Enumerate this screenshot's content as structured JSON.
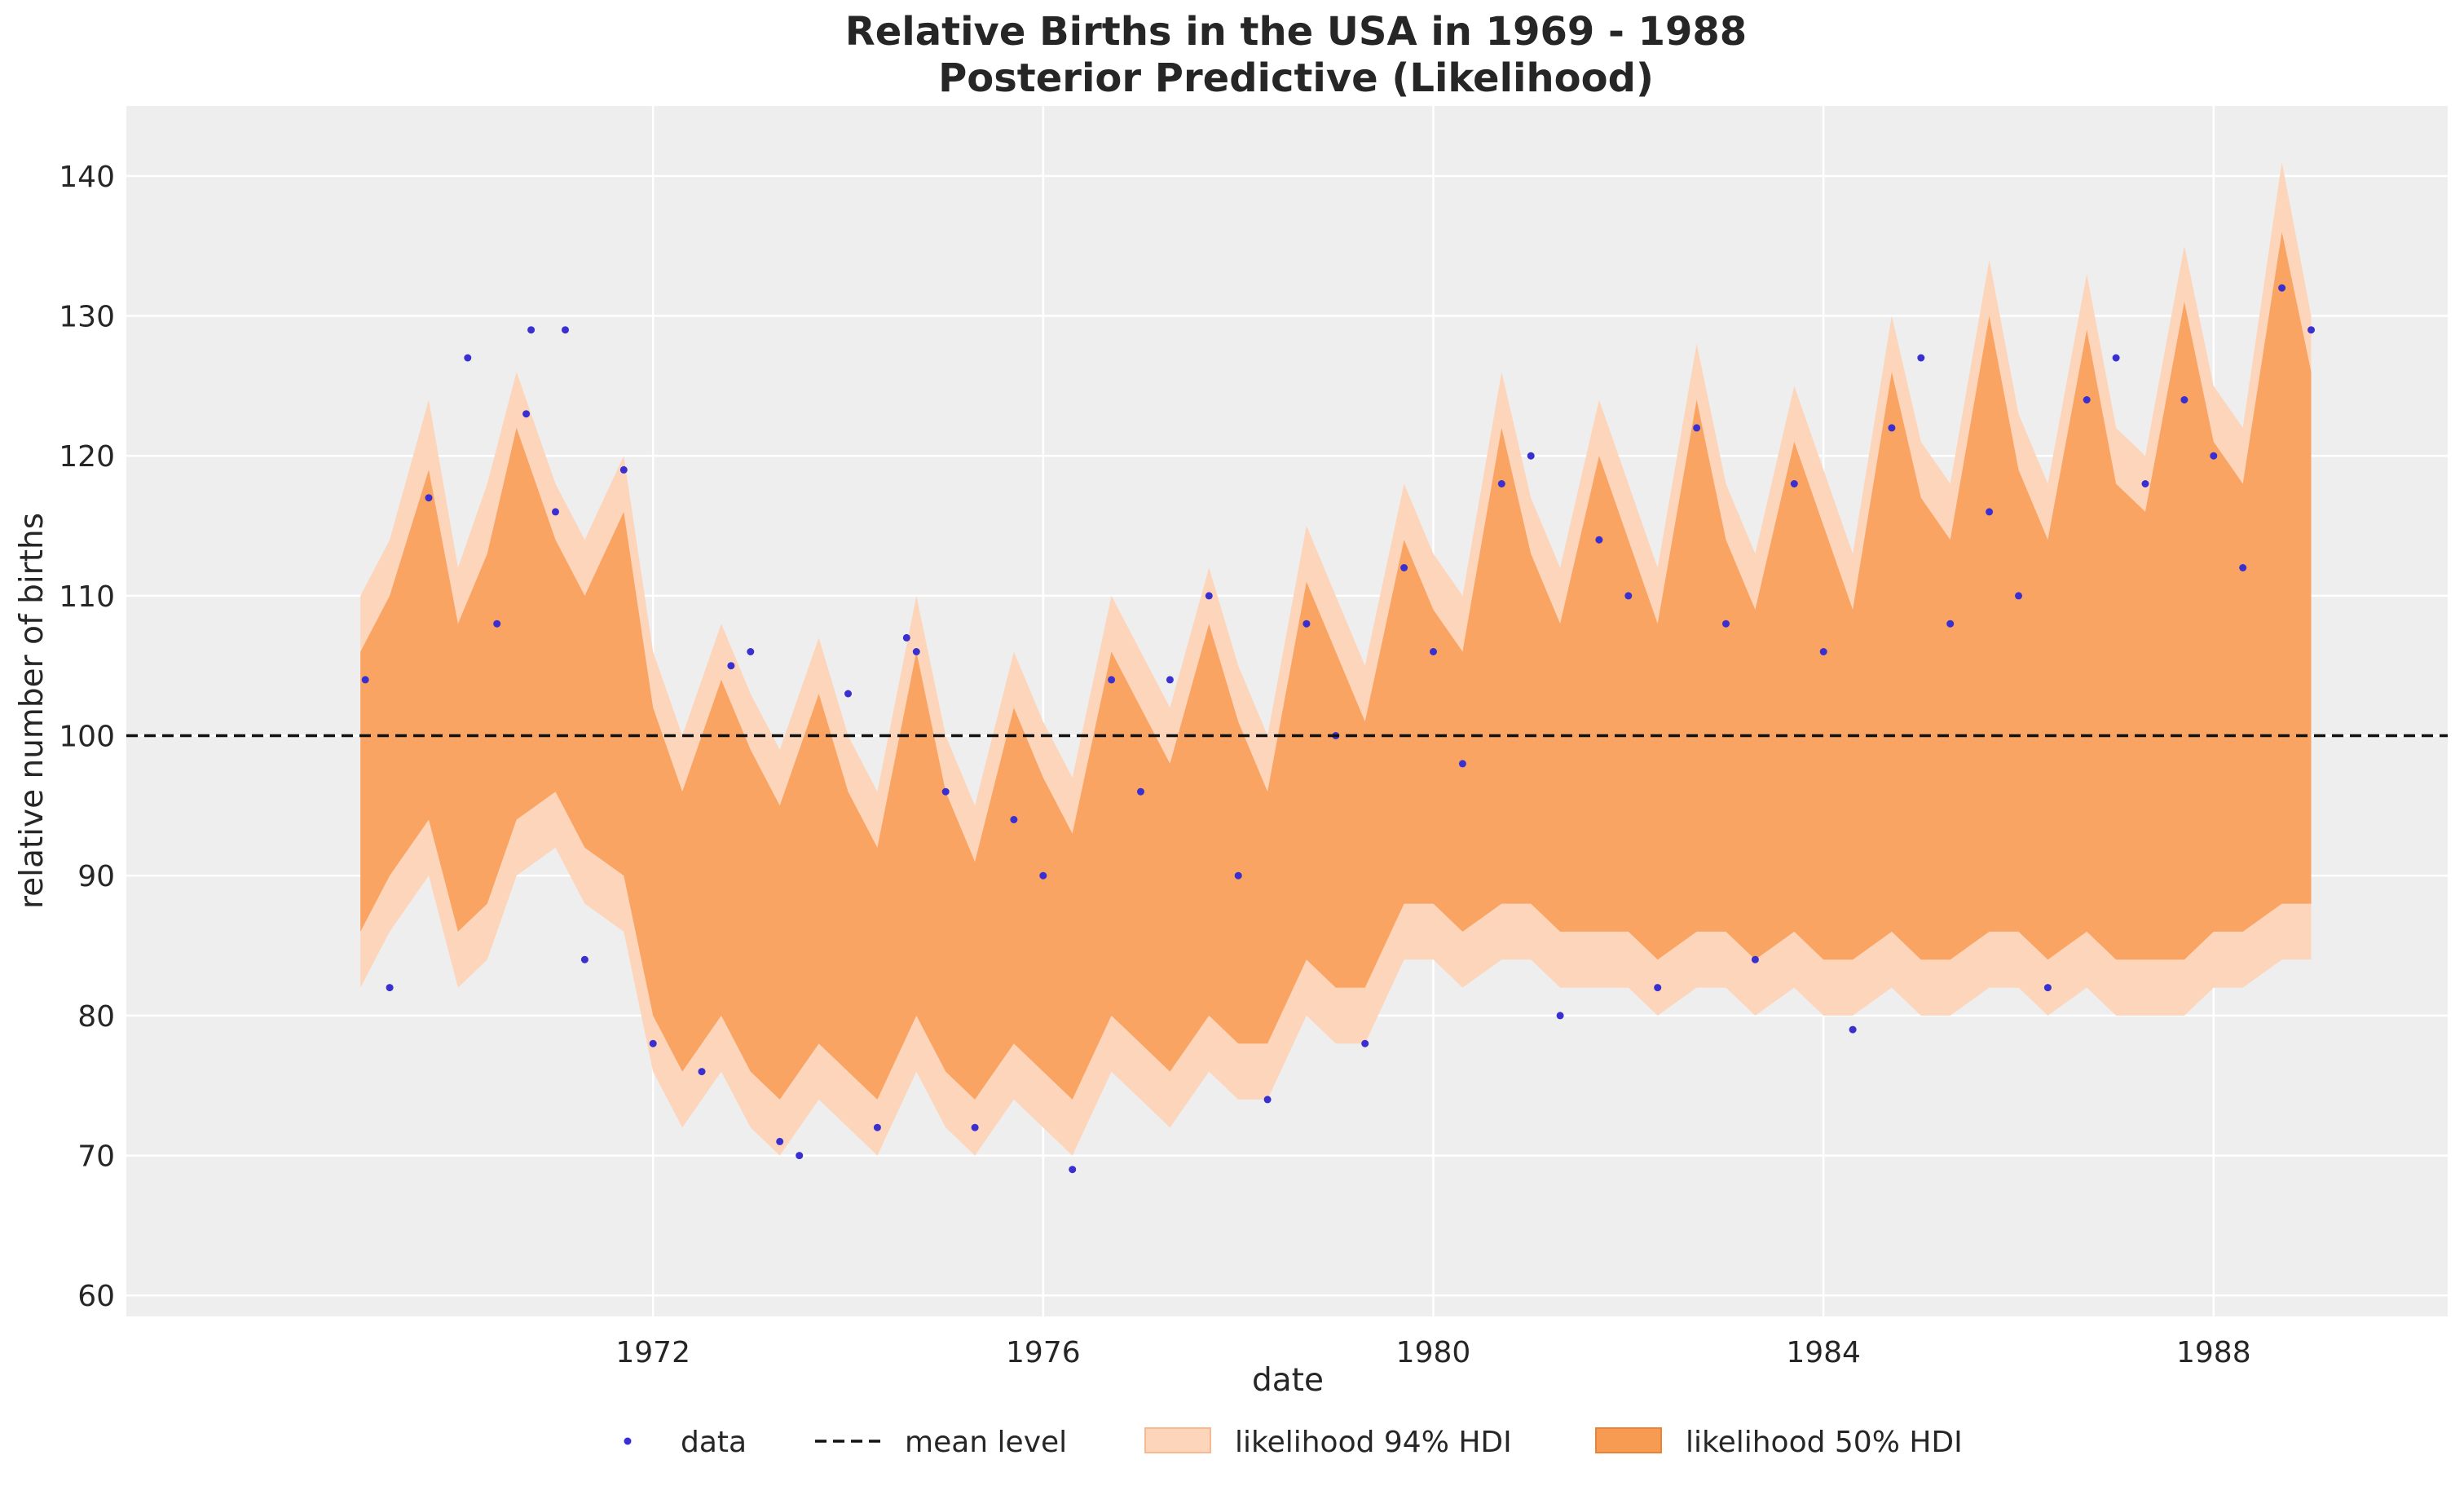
{
  "chart_data": {
    "type": "line",
    "title": [
      "Relative Births in the USA in 1969 - 1988",
      "Posterior Predictive (Likelihood)"
    ],
    "xlabel": "date",
    "ylabel": "relative number of births",
    "xlim": [
      1966.6,
      1990.4
    ],
    "ylim": [
      58.5,
      145
    ],
    "x_ticks": [
      {
        "value": 1972,
        "label": "1972"
      },
      {
        "value": 1976,
        "label": "1976"
      },
      {
        "value": 1980,
        "label": "1980"
      },
      {
        "value": 1984,
        "label": "1984"
      },
      {
        "value": 1988,
        "label": "1988"
      }
    ],
    "y_ticks": [
      {
        "value": 60,
        "label": "60"
      },
      {
        "value": 70,
        "label": "70"
      },
      {
        "value": 80,
        "label": "80"
      },
      {
        "value": 90,
        "label": "90"
      },
      {
        "value": 100,
        "label": "100"
      },
      {
        "value": 110,
        "label": "110"
      },
      {
        "value": 120,
        "label": "120"
      },
      {
        "value": 130,
        "label": "130"
      },
      {
        "value": 140,
        "label": "140"
      }
    ],
    "grid": true,
    "legend_position": "bottom-center",
    "mean_level": 100,
    "legend": [
      {
        "key": "data",
        "label": "data",
        "type": "scatter",
        "color": "#3a2fcf"
      },
      {
        "key": "mean",
        "label": "mean level",
        "type": "dashed-line",
        "color": "#000000"
      },
      {
        "key": "hdi94",
        "label": "likelihood 94% HDI",
        "type": "band",
        "color": "#fcd5bb"
      },
      {
        "key": "hdi50",
        "label": "likelihood 50% HDI",
        "type": "band",
        "color": "#f89b52"
      }
    ],
    "series": [
      {
        "name": "likelihood 94% HDI",
        "x": [
          1969.0,
          1969.3,
          1969.7,
          1970.0,
          1970.3,
          1970.6,
          1971.0,
          1971.3,
          1971.7,
          1972.0,
          1972.3,
          1972.7,
          1973.0,
          1973.3,
          1973.7,
          1974.0,
          1974.3,
          1974.7,
          1975.0,
          1975.3,
          1975.7,
          1976.0,
          1976.3,
          1976.7,
          1977.0,
          1977.3,
          1977.7,
          1978.0,
          1978.3,
          1978.7,
          1979.0,
          1979.3,
          1979.7,
          1980.0,
          1980.3,
          1980.7,
          1981.0,
          1981.3,
          1981.7,
          1982.0,
          1982.3,
          1982.7,
          1983.0,
          1983.3,
          1983.7,
          1984.0,
          1984.3,
          1984.7,
          1985.0,
          1985.3,
          1985.7,
          1986.0,
          1986.3,
          1986.7,
          1987.0,
          1987.3,
          1987.7,
          1988.0,
          1988.3,
          1988.7,
          1989.0
        ],
        "upper": [
          110,
          114,
          124,
          112,
          118,
          126,
          118,
          114,
          120,
          106,
          100,
          108,
          103,
          99,
          107,
          100,
          96,
          110,
          100,
          95,
          106,
          101,
          97,
          110,
          106,
          102,
          112,
          105,
          100,
          115,
          110,
          105,
          118,
          113,
          110,
          126,
          117,
          112,
          124,
          118,
          112,
          128,
          118,
          113,
          125,
          119,
          113,
          130,
          121,
          118,
          134,
          123,
          118,
          133,
          122,
          120,
          135,
          125,
          122,
          141,
          130
        ],
        "lower": [
          82,
          86,
          90,
          82,
          84,
          90,
          92,
          88,
          86,
          76,
          72,
          76,
          72,
          70,
          74,
          72,
          70,
          76,
          72,
          70,
          74,
          72,
          70,
          76,
          74,
          72,
          76,
          74,
          74,
          80,
          78,
          78,
          84,
          84,
          82,
          84,
          84,
          82,
          82,
          82,
          80,
          82,
          82,
          80,
          82,
          80,
          80,
          82,
          80,
          80,
          82,
          82,
          80,
          82,
          80,
          80,
          80,
          82,
          82,
          84,
          84
        ]
      },
      {
        "name": "likelihood 50% HDI",
        "x": [
          1969.0,
          1969.3,
          1969.7,
          1970.0,
          1970.3,
          1970.6,
          1971.0,
          1971.3,
          1971.7,
          1972.0,
          1972.3,
          1972.7,
          1973.0,
          1973.3,
          1973.7,
          1974.0,
          1974.3,
          1974.7,
          1975.0,
          1975.3,
          1975.7,
          1976.0,
          1976.3,
          1976.7,
          1977.0,
          1977.3,
          1977.7,
          1978.0,
          1978.3,
          1978.7,
          1979.0,
          1979.3,
          1979.7,
          1980.0,
          1980.3,
          1980.7,
          1981.0,
          1981.3,
          1981.7,
          1982.0,
          1982.3,
          1982.7,
          1983.0,
          1983.3,
          1983.7,
          1984.0,
          1984.3,
          1984.7,
          1985.0,
          1985.3,
          1985.7,
          1986.0,
          1986.3,
          1986.7,
          1987.0,
          1987.3,
          1987.7,
          1988.0,
          1988.3,
          1988.7,
          1989.0
        ],
        "upper": [
          106,
          110,
          119,
          108,
          113,
          122,
          114,
          110,
          116,
          102,
          96,
          104,
          99,
          95,
          103,
          96,
          92,
          106,
          96,
          91,
          102,
          97,
          93,
          106,
          102,
          98,
          108,
          101,
          96,
          111,
          106,
          101,
          114,
          109,
          106,
          122,
          113,
          108,
          120,
          114,
          108,
          124,
          114,
          109,
          121,
          115,
          109,
          126,
          117,
          114,
          130,
          119,
          114,
          129,
          118,
          116,
          131,
          121,
          118,
          136,
          126
        ],
        "lower": [
          86,
          90,
          94,
          86,
          88,
          94,
          96,
          92,
          90,
          80,
          76,
          80,
          76,
          74,
          78,
          76,
          74,
          80,
          76,
          74,
          78,
          76,
          74,
          80,
          78,
          76,
          80,
          78,
          78,
          84,
          82,
          82,
          88,
          88,
          86,
          88,
          88,
          86,
          86,
          86,
          84,
          86,
          86,
          84,
          86,
          84,
          84,
          86,
          84,
          84,
          86,
          86,
          84,
          86,
          84,
          84,
          84,
          86,
          86,
          88,
          88
        ]
      },
      {
        "name": "data",
        "type": "scatter",
        "x": [
          1969.05,
          1969.3,
          1969.7,
          1970.1,
          1970.4,
          1970.7,
          1970.75,
          1971.0,
          1971.1,
          1971.3,
          1971.7,
          1972.0,
          1972.5,
          1972.8,
          1973.0,
          1973.3,
          1973.5,
          1974.0,
          1974.3,
          1974.6,
          1974.7,
          1975.0,
          1975.3,
          1975.7,
          1976.0,
          1976.3,
          1976.7,
          1977.0,
          1977.3,
          1977.7,
          1978.0,
          1978.3,
          1978.7,
          1979.0,
          1979.3,
          1979.7,
          1980.0,
          1980.3,
          1980.7,
          1981.0,
          1981.3,
          1981.7,
          1982.0,
          1982.3,
          1982.7,
          1983.0,
          1983.3,
          1983.7,
          1984.0,
          1984.3,
          1984.7,
          1985.0,
          1985.3,
          1985.7,
          1986.0,
          1986.3,
          1986.7,
          1987.0,
          1987.3,
          1987.7,
          1988.0,
          1988.3,
          1988.7,
          1989.0
        ],
        "y": [
          104,
          82,
          117,
          127,
          108,
          123,
          129,
          116,
          129,
          84,
          119,
          78,
          76,
          105,
          106,
          71,
          70,
          103,
          72,
          107,
          106,
          96,
          72,
          94,
          90,
          69,
          104,
          96,
          104,
          110,
          90,
          74,
          108,
          100,
          78,
          112,
          106,
          98,
          118,
          120,
          80,
          114,
          110,
          82,
          122,
          108,
          84,
          118,
          106,
          79,
          122,
          127,
          108,
          116,
          110,
          82,
          124,
          127,
          118,
          124,
          120,
          112,
          132,
          129
        ]
      }
    ]
  }
}
